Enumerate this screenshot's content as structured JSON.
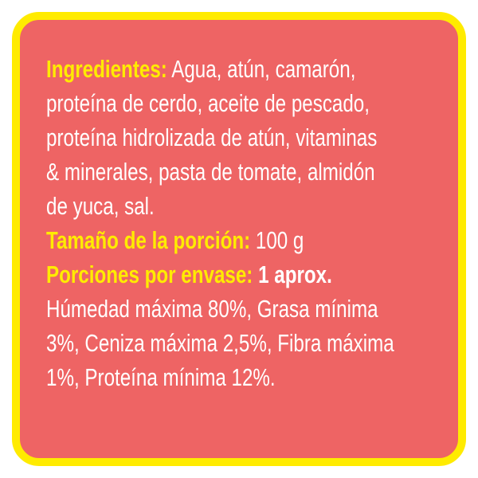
{
  "ingredients": {
    "label": "Ingredientes:",
    "lines": [
      " Agua, atún, camarón,",
      "proteína de cerdo, aceite de pescado,",
      "proteína hidrolizada de atún, vitaminas",
      "& minerales, pasta de tomate, almidón",
      "de yuca, sal."
    ]
  },
  "serving_size": {
    "label": "Tamaño de la porción:",
    "value": " 100 g"
  },
  "servings_per_container": {
    "label": "Porciones por envase:",
    "value": " 1 aprox."
  },
  "analysis": {
    "lines": [
      "Húmedad máxima 80%, Grasa mínima",
      "3%, Ceniza máxima 2,5%, Fibra máxima",
      "1%, Proteína mínima 12%."
    ]
  },
  "colors": {
    "background": "#ee6464",
    "border": "#ffeb00",
    "highlight": "#ffeb00",
    "text": "#ffffff"
  }
}
